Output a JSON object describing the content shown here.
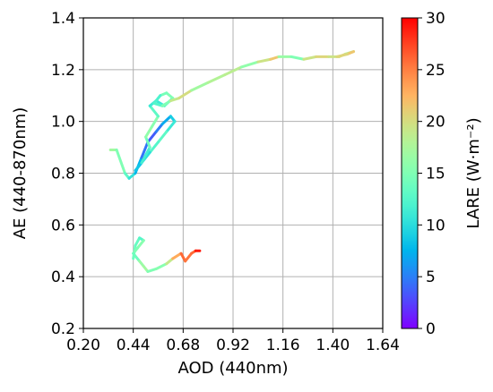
{
  "chart_data": {
    "type": "line",
    "title": "",
    "xlabel": "AOD (440nm)",
    "ylabel": "AE (440-870nm)",
    "xlim": [
      0.2,
      1.64
    ],
    "ylim": [
      0.2,
      1.4
    ],
    "xticks": [
      "0.20",
      "0.44",
      "0.68",
      "0.92",
      "1.16",
      "1.40",
      "1.64"
    ],
    "yticks": [
      "0.2",
      "0.4",
      "0.6",
      "0.8",
      "1.0",
      "1.2",
      "1.4"
    ],
    "grid": true,
    "colorbar": {
      "label": "LARE (W·m⁻²)",
      "range": [
        0,
        30
      ],
      "ticks": [
        "0",
        "5",
        "10",
        "15",
        "20",
        "25",
        "30"
      ],
      "colormap": "rainbow"
    },
    "series": [
      {
        "points": [
          [
            0.33,
            0.89,
            18
          ],
          [
            0.36,
            0.89,
            16
          ],
          [
            0.4,
            0.8,
            14
          ],
          [
            0.42,
            0.78,
            12
          ],
          [
            0.45,
            0.8,
            9
          ],
          [
            0.48,
            0.86,
            6
          ],
          [
            0.51,
            0.92,
            3
          ],
          [
            0.55,
            0.96,
            4
          ],
          [
            0.58,
            0.99,
            6
          ],
          [
            0.62,
            1.02,
            8
          ],
          [
            0.64,
            1.0,
            10
          ],
          [
            0.6,
            0.96,
            12
          ],
          [
            0.56,
            0.92,
            14
          ],
          [
            0.52,
            0.88,
            11
          ],
          [
            0.48,
            0.84,
            9
          ],
          [
            0.45,
            0.81,
            7
          ],
          [
            0.48,
            0.84,
            10
          ],
          [
            0.52,
            0.9,
            13
          ],
          [
            0.5,
            0.94,
            15
          ],
          [
            0.53,
            0.98,
            17
          ],
          [
            0.56,
            1.02,
            14
          ],
          [
            0.52,
            1.06,
            12
          ],
          [
            0.55,
            1.08,
            10
          ],
          [
            0.59,
            1.06,
            12
          ],
          [
            0.63,
            1.09,
            14
          ],
          [
            0.6,
            1.11,
            16
          ],
          [
            0.57,
            1.1,
            13
          ],
          [
            0.54,
            1.07,
            11
          ],
          [
            0.58,
            1.06,
            14
          ],
          [
            0.62,
            1.08,
            16
          ],
          [
            0.66,
            1.09,
            22
          ],
          [
            0.72,
            1.12,
            18
          ],
          [
            0.8,
            1.15,
            16
          ],
          [
            0.88,
            1.18,
            20
          ],
          [
            0.96,
            1.21,
            17
          ],
          [
            1.04,
            1.23,
            15
          ],
          [
            1.1,
            1.24,
            24
          ],
          [
            1.14,
            1.25,
            19
          ],
          [
            1.2,
            1.25,
            14
          ],
          [
            1.26,
            1.24,
            16
          ],
          [
            1.32,
            1.25,
            23
          ],
          [
            1.38,
            1.25,
            18
          ],
          [
            1.43,
            1.25,
            21
          ],
          [
            1.46,
            1.26,
            20
          ],
          [
            1.5,
            1.27,
            17
          ],
          [
            1.47,
            1.26,
            26
          ],
          [
            1.42,
            1.25,
            15
          ]
        ]
      },
      {
        "points": [
          [
            0.44,
            0.47,
            12
          ],
          [
            0.45,
            0.52,
            16
          ],
          [
            0.47,
            0.55,
            11
          ],
          [
            0.49,
            0.54,
            14
          ],
          [
            0.46,
            0.51,
            17
          ],
          [
            0.44,
            0.49,
            13
          ],
          [
            0.47,
            0.46,
            15
          ],
          [
            0.49,
            0.44,
            18
          ],
          [
            0.51,
            0.42,
            16
          ],
          [
            0.55,
            0.43,
            14
          ],
          [
            0.6,
            0.45,
            17
          ],
          [
            0.63,
            0.47,
            21
          ],
          [
            0.67,
            0.49,
            25
          ],
          [
            0.69,
            0.46,
            27
          ],
          [
            0.72,
            0.49,
            24
          ],
          [
            0.74,
            0.5,
            28
          ],
          [
            0.76,
            0.5,
            30
          ]
        ]
      }
    ]
  }
}
